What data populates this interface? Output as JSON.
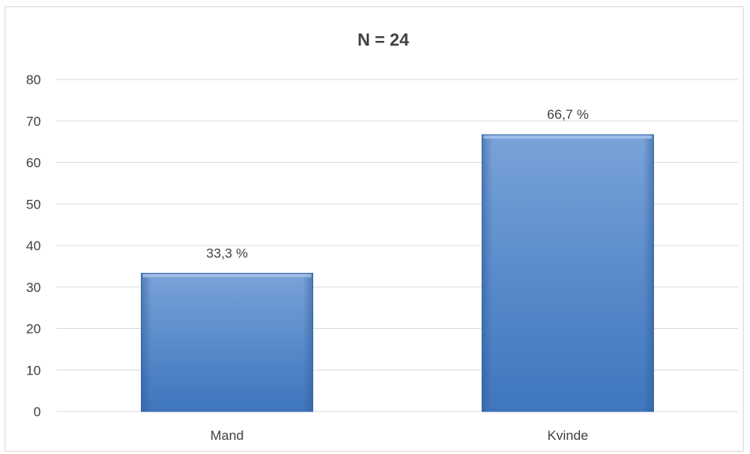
{
  "chart_data": {
    "type": "bar",
    "title": "N = 24",
    "categories": [
      "Mand",
      "Kvinde"
    ],
    "values": [
      33.3,
      66.7
    ],
    "data_labels": [
      "33,3 %",
      "66,7 %"
    ],
    "xlabel": "",
    "ylabel": "",
    "ylim": [
      0,
      80
    ],
    "yticks": [
      0,
      10,
      20,
      30,
      40,
      50,
      60,
      70,
      80
    ],
    "grid": true,
    "legend": "none",
    "bar_color": "#4a7ebb",
    "bar_color_light": "#6f9bd6",
    "bar_color_dark": "#3a6aa8"
  }
}
